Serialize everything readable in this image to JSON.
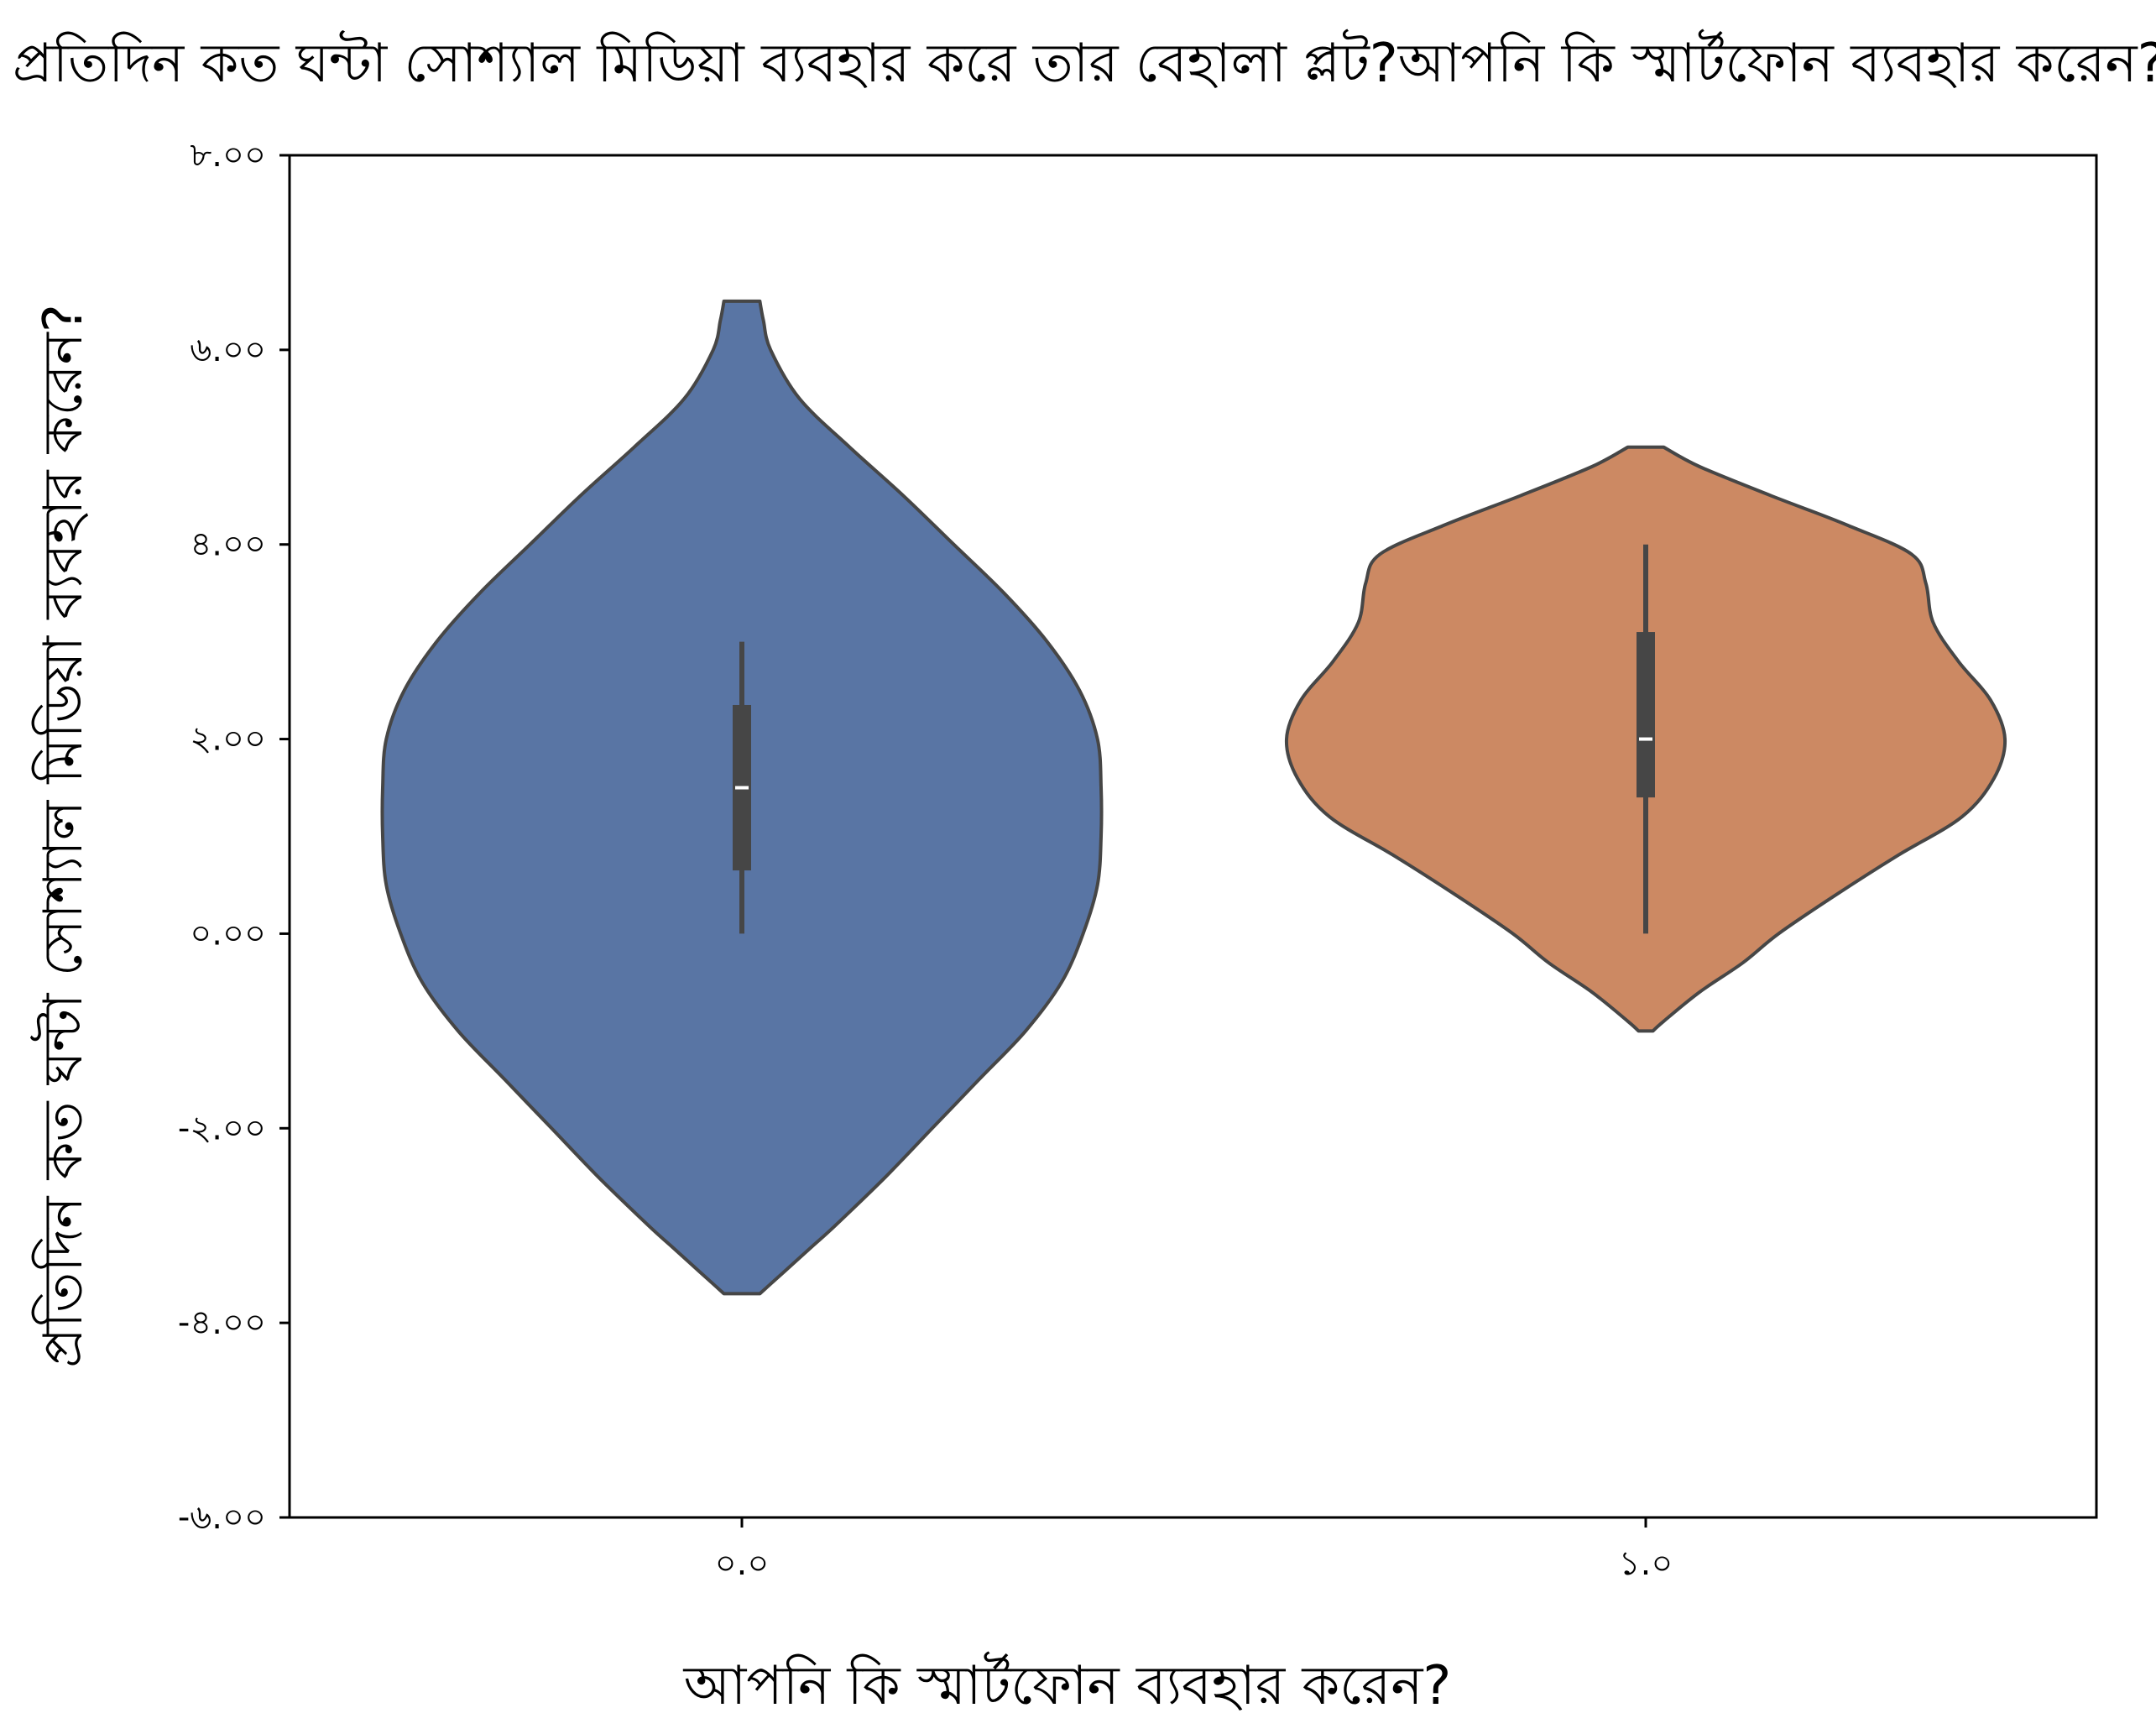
{
  "chart_data": {
    "type": "violin",
    "title": "প্রতিদিন কত ঘন্টা সোশ্যাল মিডিয়া ব্যবহার করে তার বেহালা প্লট?আপনি কি স্মার্টফোন ব্যবহার করেন?",
    "xlabel": "আপনি কি স্মার্টফোন ব্যবহার করেন?",
    "ylabel": "প্রতিদিন কত ঘন্টা সোশ্যাল মিডিয়া ব্যবহার করেন?",
    "categories": [
      "0.0",
      "1.0"
    ],
    "category_tick_labels": [
      "০.০",
      "১.০"
    ],
    "ylim": [
      -6,
      8
    ],
    "yticks": [
      -6,
      -4,
      -2,
      0,
      2,
      4,
      6,
      8
    ],
    "ytick_labels": [
      "-৬.০০",
      "-৪.০০",
      "-২.০০",
      "০.০০",
      "২.০০",
      "৪.০০",
      "৬.০০",
      "৮.০০"
    ],
    "grid": false,
    "legend": "none",
    "series": [
      {
        "category": "0.0",
        "color": "#5975a4",
        "density": [
          [
            -3.7,
            0.05
          ],
          [
            -3.6,
            0.08
          ],
          [
            -3.4,
            0.14
          ],
          [
            -3.2,
            0.2
          ],
          [
            -3.0,
            0.26
          ],
          [
            -2.5,
            0.4
          ],
          [
            -2.0,
            0.53
          ],
          [
            -1.5,
            0.66
          ],
          [
            -1.0,
            0.79
          ],
          [
            -0.5,
            0.89
          ],
          [
            0.0,
            0.95
          ],
          [
            0.5,
            0.99
          ],
          [
            1.0,
            1.0
          ],
          [
            1.5,
            1.0
          ],
          [
            2.0,
            0.99
          ],
          [
            2.5,
            0.94
          ],
          [
            3.0,
            0.85
          ],
          [
            3.5,
            0.73
          ],
          [
            4.0,
            0.59
          ],
          [
            4.5,
            0.45
          ],
          [
            5.0,
            0.3
          ],
          [
            5.5,
            0.16
          ],
          [
            6.0,
            0.08
          ],
          [
            6.3,
            0.06
          ],
          [
            6.5,
            0.05
          ]
        ],
        "whisker": [
          0.0,
          3.0
        ],
        "box": [
          0.65,
          2.35
        ],
        "median": 1.5
      },
      {
        "category": "1.0",
        "color": "#cc8963",
        "density": [
          [
            -1.0,
            0.02
          ],
          [
            -0.9,
            0.05
          ],
          [
            -0.6,
            0.15
          ],
          [
            -0.3,
            0.27
          ],
          [
            0.0,
            0.37
          ],
          [
            0.4,
            0.53
          ],
          [
            0.8,
            0.7
          ],
          [
            1.2,
            0.88
          ],
          [
            1.6,
            0.97
          ],
          [
            2.0,
            1.0
          ],
          [
            2.4,
            0.96
          ],
          [
            2.8,
            0.87
          ],
          [
            3.2,
            0.8
          ],
          [
            3.6,
            0.78
          ],
          [
            3.9,
            0.74
          ],
          [
            4.2,
            0.56
          ],
          [
            4.5,
            0.35
          ],
          [
            4.8,
            0.15
          ],
          [
            5.0,
            0.05
          ]
        ],
        "whisker": [
          0.0,
          4.0
        ],
        "box": [
          1.4,
          3.1
        ],
        "median": 2.0
      }
    ]
  }
}
